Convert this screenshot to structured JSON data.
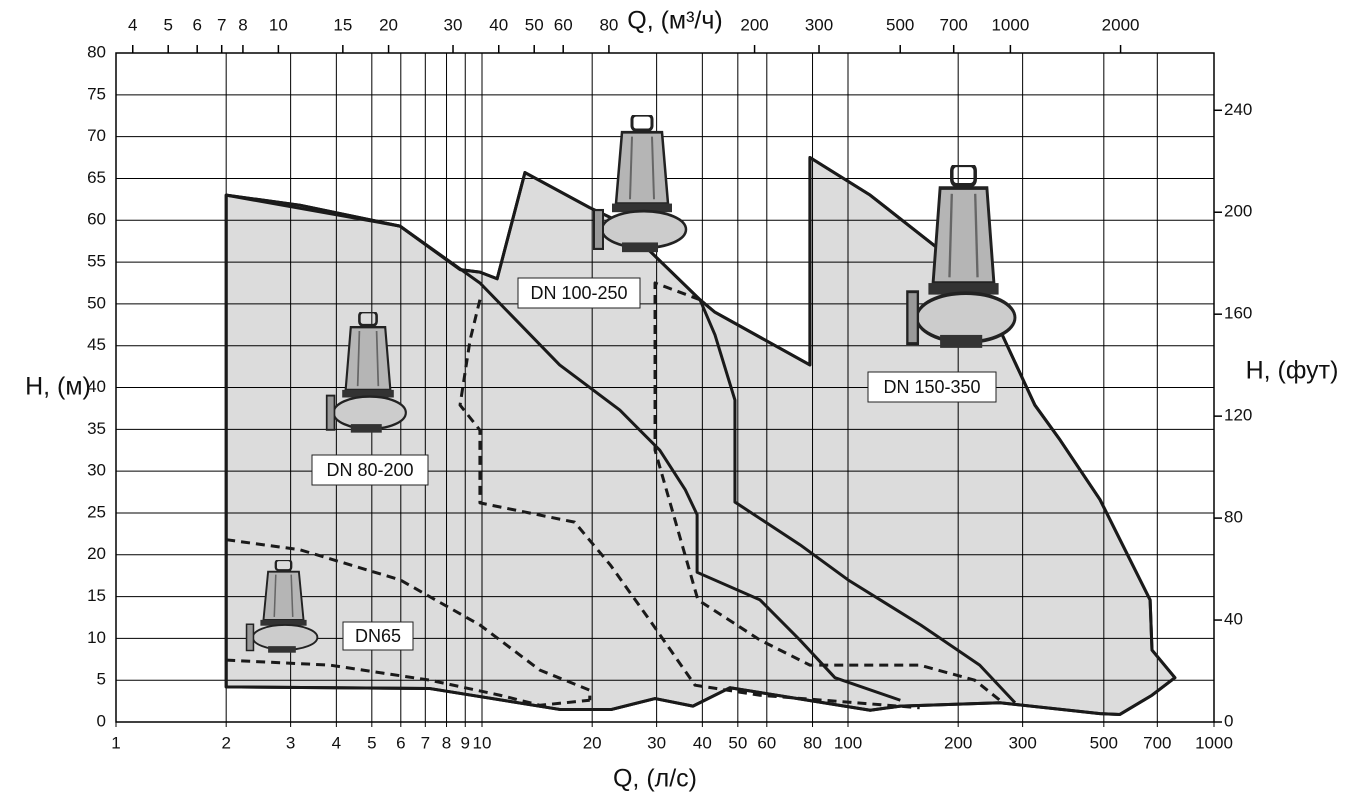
{
  "chart_data": {
    "type": "line",
    "xscale": "log",
    "xlabel": "Q, (л/с)",
    "ylabel": "H, (м)",
    "y2label": "H, (фут)",
    "x2label": "Q, (м³/ч)",
    "xlim": [
      1,
      1000
    ],
    "xticks": [
      1,
      2,
      3,
      4,
      5,
      6,
      7,
      8,
      9,
      10,
      20,
      30,
      40,
      50,
      60,
      80,
      100,
      200,
      300,
      500,
      700,
      1000
    ],
    "ylim": [
      0,
      80
    ],
    "yticks": [
      0,
      5,
      10,
      15,
      20,
      25,
      30,
      35,
      40,
      45,
      50,
      55,
      60,
      65,
      70,
      75,
      80
    ],
    "y2lim": [
      0,
      262.47
    ],
    "y2ticks": [
      0,
      40,
      80,
      120,
      160,
      200,
      240
    ],
    "x2lim": [
      3.6,
      3600
    ],
    "x2ticks": [
      4,
      5,
      6,
      7,
      8,
      10,
      15,
      20,
      30,
      40,
      50,
      60,
      80,
      200,
      300,
      500,
      700,
      1000,
      2000
    ],
    "grid": true,
    "area_color": "#dcdcdc",
    "line_color": "#1a1a1a",
    "areas": [
      {
        "x": [
          2,
          2,
          3.18,
          5.97,
          8.71,
          9.87,
          11.0,
          13.1,
          19.7,
          23.8,
          39.4,
          43.3,
          78.7,
          78.7,
          115,
          190,
          260,
          324,
          380,
          488,
          669,
          677,
          782,
          677,
          553,
          488,
          260,
          139,
          115,
          47.6,
          37.7,
          29.7,
          22.6,
          16.3,
          7.21,
          2
        ],
        "y": [
          4.2,
          63,
          61.8,
          59.3,
          54.1,
          53.8,
          53.0,
          65.7,
          61.5,
          59.8,
          50.5,
          49.0,
          42.7,
          67.5,
          63,
          55.5,
          46.9,
          37.9,
          33.7,
          26.6,
          14.6,
          8.6,
          5.3,
          3.2,
          0.9,
          1.0,
          2.3,
          1.9,
          1.4,
          4.1,
          1.9,
          2.8,
          1.5,
          1.5,
          4.0,
          4.2
        ]
      }
    ],
    "curves": [
      {
        "style": "solid",
        "x": [
          2,
          5.97,
          9.87,
          16.3,
          23.8,
          30.6,
          35.9,
          38.7,
          38.7,
          57.5,
          73.9,
          92.1,
          139
        ],
        "y": [
          63,
          59.3,
          52.5,
          42.7,
          37.3,
          32.5,
          27.8,
          24.8,
          17.9,
          14.6,
          9.8,
          5.3,
          2.6
        ]
      },
      {
        "style": "solid",
        "x": [
          39.4,
          43.3,
          49.1,
          49.1,
          73.9,
          100,
          158,
          229,
          286
        ],
        "y": [
          50.5,
          46.3,
          38.5,
          26.3,
          21.2,
          17,
          11.6,
          6.8,
          2.3
        ]
      },
      {
        "style": "dashed",
        "x": [
          2,
          3.18,
          5.97,
          9.87,
          14.4,
          19.7,
          19.7
        ],
        "y": [
          21.8,
          20.6,
          17,
          11.6,
          6.2,
          3.8,
          2.6
        ]
      },
      {
        "style": "dashed",
        "x": [
          2,
          3.84,
          7.21,
          11.2,
          14.4,
          19.7
        ],
        "y": [
          7.4,
          6.8,
          5.0,
          3.2,
          2.0,
          2.6
        ]
      },
      {
        "style": "dashed",
        "x": [
          9.87,
          9.28,
          8.71,
          9.87,
          9.87,
          17.9,
          22.4,
          28.7,
          38.2,
          57.5,
          157
        ],
        "y": [
          50.5,
          45.7,
          37.9,
          34.9,
          26.2,
          23.9,
          18.8,
          12.2,
          4.4,
          3.2,
          1.7
        ]
      },
      {
        "style": "dashed",
        "x": [
          39.4,
          29.7,
          29.7,
          38.9,
          57.5,
          78.7,
          157,
          222,
          260
        ],
        "y": [
          50.5,
          52.5,
          32.5,
          14.6,
          9.8,
          6.8,
          6.8,
          5.0,
          2.6
        ]
      }
    ],
    "labels": [
      "DN 80-200",
      "DN 100-250",
      "DN 150-350",
      "DN65"
    ]
  }
}
